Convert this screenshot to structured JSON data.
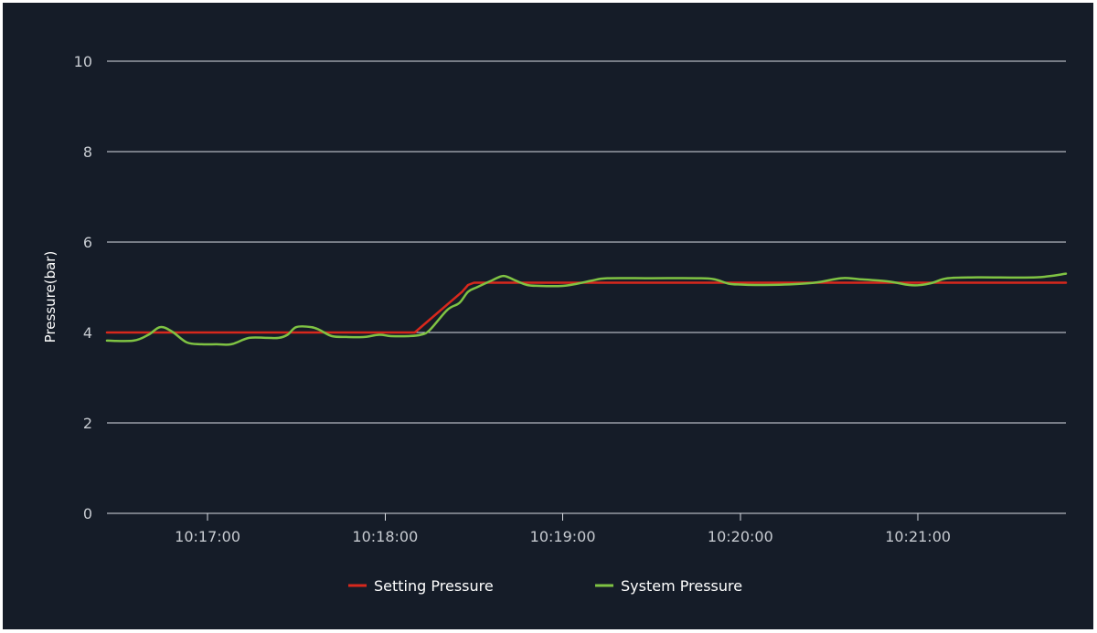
{
  "chart_data": {
    "type": "line",
    "title": "",
    "xlabel": "",
    "ylabel": "Pressure(bar)",
    "ylim": [
      0,
      10
    ],
    "yticks": [
      0,
      2,
      4,
      6,
      8,
      10
    ],
    "xlim": [
      "10:16:26",
      "10:21:50"
    ],
    "xticks": [
      "10:17:00",
      "10:18:00",
      "10:19:00",
      "10:20:00",
      "10:21:00"
    ],
    "grid": true,
    "legend": "bottom",
    "background": "#151c28",
    "series": [
      {
        "name": "Setting Pressure",
        "color": "#d7281c",
        "x": [
          "10:16:26",
          "10:18:10",
          "10:18:26",
          "10:18:28",
          "10:18:30",
          "10:21:50"
        ],
        "y": [
          4.0,
          4.0,
          4.9,
          5.05,
          5.1,
          5.1
        ]
      },
      {
        "name": "System Pressure",
        "color": "#7fc343",
        "x": [
          "10:16:26",
          "10:16:35",
          "10:16:40",
          "10:16:44",
          "10:16:48",
          "10:16:53",
          "10:16:58",
          "10:17:03",
          "10:17:08",
          "10:17:14",
          "10:17:20",
          "10:17:24",
          "10:17:27",
          "10:17:30",
          "10:17:35",
          "10:17:38",
          "10:17:42",
          "10:17:47",
          "10:17:53",
          "10:17:58",
          "10:18:02",
          "10:18:08",
          "10:18:12",
          "10:18:15",
          "10:18:21",
          "10:18:25",
          "10:18:28",
          "10:18:31",
          "10:18:36",
          "10:18:40",
          "10:18:44",
          "10:18:48",
          "10:18:52",
          "10:19:00",
          "10:19:05",
          "10:19:10",
          "10:19:15",
          "10:19:30",
          "10:19:45",
          "10:19:51",
          "10:19:56",
          "10:20:00",
          "10:20:05",
          "10:20:15",
          "10:20:25",
          "10:20:34",
          "10:20:40",
          "10:20:50",
          "10:20:57",
          "10:21:01",
          "10:21:05",
          "10:21:10",
          "10:21:20",
          "10:21:40",
          "10:21:50"
        ],
        "y": [
          3.82,
          3.82,
          3.95,
          4.12,
          4.02,
          3.78,
          3.74,
          3.74,
          3.74,
          3.88,
          3.88,
          3.88,
          3.95,
          4.12,
          4.12,
          4.05,
          3.92,
          3.9,
          3.9,
          3.95,
          3.92,
          3.92,
          3.95,
          4.05,
          4.5,
          4.65,
          4.9,
          5.0,
          5.15,
          5.25,
          5.15,
          5.05,
          5.03,
          5.03,
          5.08,
          5.15,
          5.2,
          5.2,
          5.2,
          5.18,
          5.08,
          5.06,
          5.05,
          5.06,
          5.1,
          5.2,
          5.18,
          5.13,
          5.05,
          5.05,
          5.1,
          5.2,
          5.22,
          5.22,
          5.3
        ]
      }
    ]
  }
}
